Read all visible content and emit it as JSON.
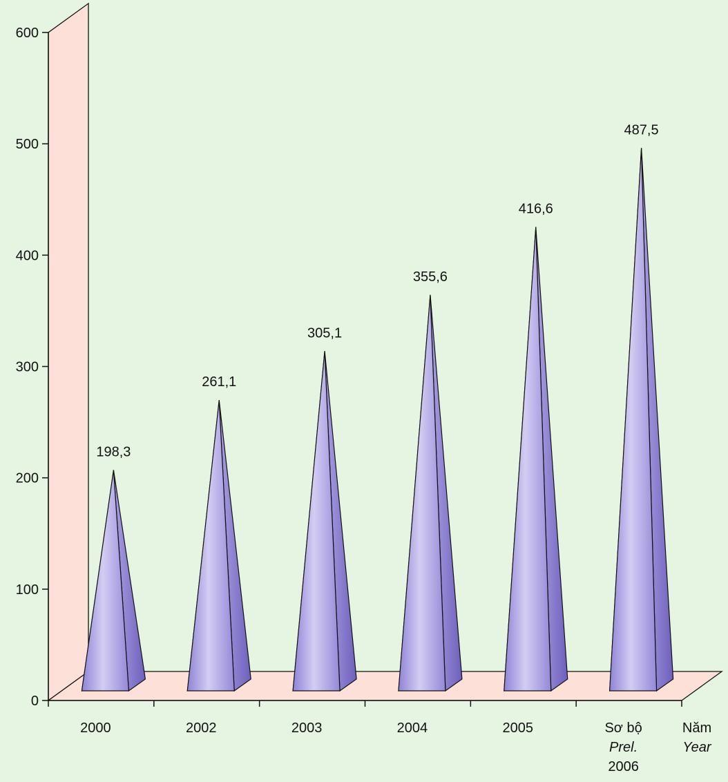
{
  "chart_data": {
    "type": "bar",
    "shape": "3d-pyramid",
    "categories": [
      "2000",
      "2002",
      "2003",
      "2004",
      "2005",
      "Sơ bộ|Prel.|2006"
    ],
    "series": [
      {
        "values": [
          198.3,
          261.1,
          305.1,
          355.6,
          416.6,
          487.5
        ]
      }
    ],
    "value_labels": [
      "198,3",
      "261,1",
      "305,1",
      "355,6",
      "416,6",
      "487,5"
    ],
    "ylim": [
      0,
      600
    ],
    "yticks": [
      0,
      100,
      200,
      300,
      400,
      500,
      600
    ],
    "xlabel_vi": "Năm",
    "xlabel_en": "Year",
    "grid": false,
    "legend": "none",
    "colors": {
      "background": "#e6f4e2",
      "wall": "#fde0d8",
      "floor": "#fde0d8",
      "bar_light": "#c9c0ee",
      "bar_mid": "#a59ae0",
      "bar_dark": "#6a5cb8",
      "outline": "#111111"
    }
  }
}
